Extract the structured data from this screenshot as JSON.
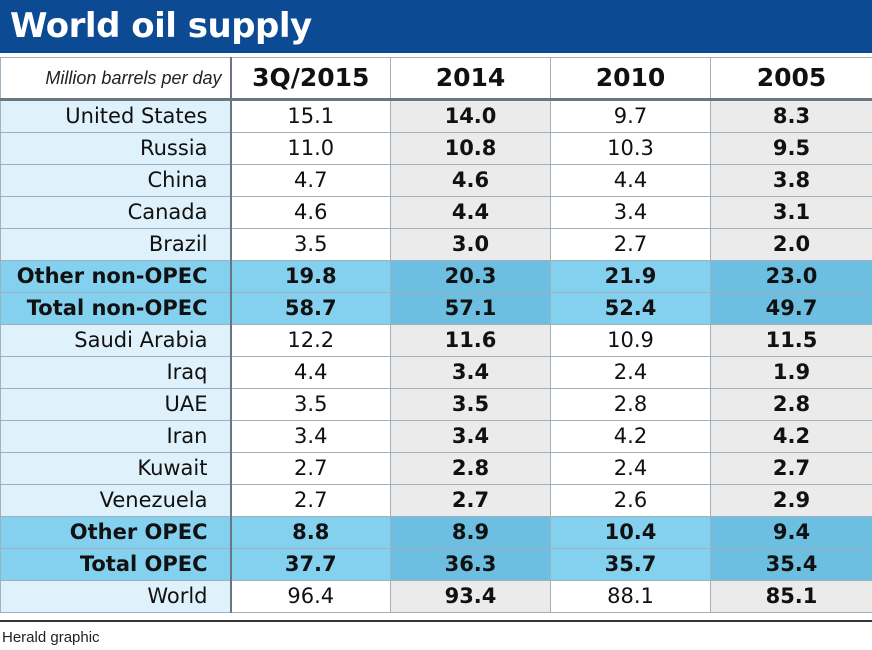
{
  "title": "World oil supply",
  "unit_label": "Million barrels per day",
  "credit": "Herald graphic",
  "colors": {
    "header_bg": "#0c4a93",
    "label_bg": "#dff1fa",
    "subtotal_bg": "#84d1ef",
    "subtotal_bg_alt": "#6cbfe0",
    "alt_col_bg": "#ebebeb"
  },
  "chart_data": {
    "type": "table",
    "title": "World oil supply",
    "unit": "Million barrels per day",
    "columns": [
      "3Q/2015",
      "2014",
      "2010",
      "2005"
    ],
    "rows": [
      {
        "label": "United States",
        "values": [
          "15.1",
          "14.0",
          "9.7",
          "8.3"
        ],
        "highlight": false
      },
      {
        "label": "Russia",
        "values": [
          "11.0",
          "10.8",
          "10.3",
          "9.5"
        ],
        "highlight": false
      },
      {
        "label": "China",
        "values": [
          "4.7",
          "4.6",
          "4.4",
          "3.8"
        ],
        "highlight": false
      },
      {
        "label": "Canada",
        "values": [
          "4.6",
          "4.4",
          "3.4",
          "3.1"
        ],
        "highlight": false
      },
      {
        "label": "Brazil",
        "values": [
          "3.5",
          "3.0",
          "2.7",
          "2.0"
        ],
        "highlight": false
      },
      {
        "label": "Other non-OPEC",
        "values": [
          "19.8",
          "20.3",
          "21.9",
          "23.0"
        ],
        "highlight": true
      },
      {
        "label": "Total non-OPEC",
        "values": [
          "58.7",
          "57.1",
          "52.4",
          "49.7"
        ],
        "highlight": true
      },
      {
        "label": "Saudi Arabia",
        "values": [
          "12.2",
          "11.6",
          "10.9",
          "11.5"
        ],
        "highlight": false
      },
      {
        "label": "Iraq",
        "values": [
          "4.4",
          "3.4",
          "2.4",
          "1.9"
        ],
        "highlight": false
      },
      {
        "label": "UAE",
        "values": [
          "3.5",
          "3.5",
          "2.8",
          "2.8"
        ],
        "highlight": false
      },
      {
        "label": "Iran",
        "values": [
          "3.4",
          "3.4",
          "4.2",
          "4.2"
        ],
        "highlight": false
      },
      {
        "label": "Kuwait",
        "values": [
          "2.7",
          "2.8",
          "2.4",
          "2.7"
        ],
        "highlight": false
      },
      {
        "label": "Venezuela",
        "values": [
          "2.7",
          "2.7",
          "2.6",
          "2.9"
        ],
        "highlight": false
      },
      {
        "label": "Other OPEC",
        "values": [
          "8.8",
          "8.9",
          "10.4",
          "9.4"
        ],
        "highlight": true
      },
      {
        "label": "Total OPEC",
        "values": [
          "37.7",
          "36.3",
          "35.7",
          "35.4"
        ],
        "highlight": true
      },
      {
        "label": "World",
        "values": [
          "96.4",
          "93.4",
          "88.1",
          "85.1"
        ],
        "highlight": false
      }
    ]
  }
}
